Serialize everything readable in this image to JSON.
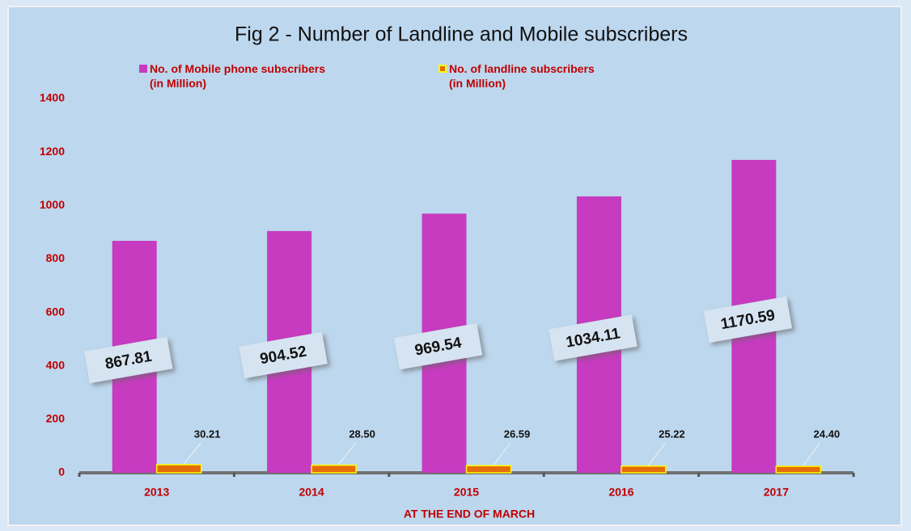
{
  "chart_data": {
    "type": "bar",
    "title": "Fig 2 - Number of Landline and Mobile subscribers",
    "x_label": "AT THE END OF MARCH",
    "categories": [
      "2013",
      "2014",
      "2015",
      "2016",
      "2017"
    ],
    "series": [
      {
        "name": "No. of Mobile phone subscribers\n(in Million)",
        "color": "#c63bbf",
        "values": [
          867.81,
          904.52,
          969.54,
          1034.11,
          1170.59
        ]
      },
      {
        "name": "No. of landline subscribers\n(in Million)",
        "color": "#e46c0a",
        "values": [
          30.21,
          28.5,
          26.59,
          25.22,
          24.4
        ],
        "value_labels": [
          "30.21",
          "28.50",
          "26.59",
          "25.22",
          "24.40"
        ]
      }
    ],
    "ylim": [
      0,
      1400
    ],
    "yticks": [
      0,
      200,
      400,
      600,
      800,
      1000,
      1200,
      1400
    ]
  }
}
